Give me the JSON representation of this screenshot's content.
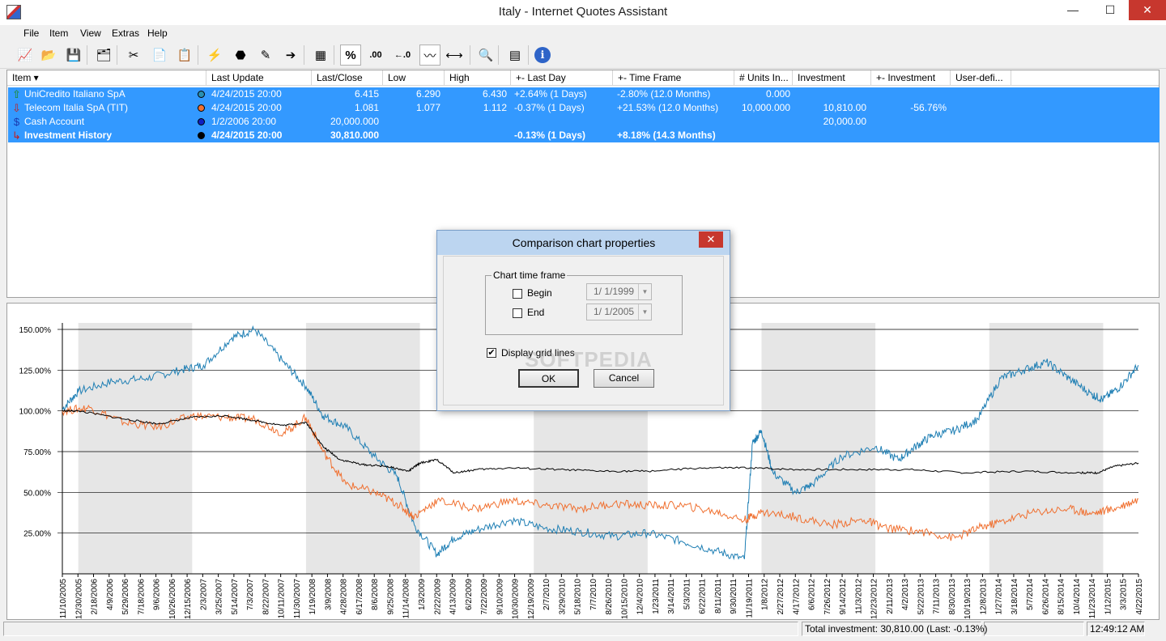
{
  "window": {
    "title": "Italy - Internet Quotes Assistant",
    "minimize": "—",
    "maximize": "☐",
    "close": "✕"
  },
  "menu": [
    "File",
    "Item",
    "View",
    "Extras",
    "Help"
  ],
  "toolbar": {
    "tools": [
      {
        "name": "chart-icon",
        "glyph": "📈"
      },
      {
        "name": "open-folder-icon",
        "glyph": "📂"
      },
      {
        "name": "save-icon",
        "glyph": "💾"
      },
      {
        "name": "new-item-icon",
        "glyph": "🗂"
      },
      {
        "name": "cut-icon",
        "glyph": "✂"
      },
      {
        "name": "copy-icon",
        "glyph": "📄"
      },
      {
        "name": "paste-icon",
        "glyph": "📋"
      },
      {
        "name": "update-quotes-icon",
        "glyph": "⚡"
      },
      {
        "name": "stop-icon",
        "glyph": "⬣"
      },
      {
        "name": "edit-icon",
        "glyph": "✎"
      },
      {
        "name": "import-icon",
        "glyph": "➔"
      },
      {
        "name": "portfolio-icon",
        "glyph": "▦"
      },
      {
        "name": "percent-icon",
        "glyph": "%"
      },
      {
        "name": "increase-decimals-icon",
        "glyph": ".00"
      },
      {
        "name": "decrease-decimals-icon",
        "glyph": "←.0"
      },
      {
        "name": "comparison-chart-icon",
        "glyph": "〰"
      },
      {
        "name": "chart-timeframe-icon",
        "glyph": "⟷"
      },
      {
        "name": "preview-icon",
        "glyph": "🔍"
      },
      {
        "name": "calculator-icon",
        "glyph": "▤"
      },
      {
        "name": "info-icon",
        "glyph": "ℹ"
      }
    ]
  },
  "list": {
    "columns": [
      "Item",
      "Last Update",
      "Last/Close",
      "Low",
      "High",
      "+- Last Day",
      "+- Time Frame",
      "# Units In...",
      "Investment",
      "+- Investment",
      "User-defi..."
    ],
    "rows": [
      {
        "icon": "up-arrow-icon",
        "glyph": "⇧",
        "icon_color": "#1a8a1a",
        "dot": "#2a8fb0",
        "item": "UniCredito Italiano SpA",
        "last_update": "4/24/2015   20:00",
        "last_close": "6.415",
        "low": "6.290",
        "high": "6.430",
        "last_day": "+2.64% (1 Days)",
        "time_frame": "-2.80% (12.0 Months)",
        "units": "0.000",
        "investment": "",
        "inv_change": "",
        "bold": false
      },
      {
        "icon": "down-arrow-icon",
        "glyph": "⇩",
        "icon_color": "#c02020",
        "dot": "#f07030",
        "item": "Telecom Italia SpA (TIT)",
        "last_update": "4/24/2015   20:00",
        "last_close": "1.081",
        "low": "1.077",
        "high": "1.112",
        "last_day": "-0.37% (1 Days)",
        "time_frame": "+21.53% (12.0 Months)",
        "units": "10,000.000",
        "investment": "10,810.00",
        "inv_change": "-56.76%",
        "bold": false
      },
      {
        "icon": "dollar-icon",
        "glyph": "$",
        "icon_color": "#1a3ab0",
        "dot": "#1020c0",
        "item": "Cash Account",
        "last_update": "1/2/2006   20:00",
        "last_close": "20,000.000",
        "low": "",
        "high": "",
        "last_day": "",
        "time_frame": "",
        "units": "",
        "investment": "20,000.00",
        "inv_change": "",
        "bold": false
      },
      {
        "icon": "history-icon",
        "glyph": "↳",
        "icon_color": "#c02020",
        "dot": "#000000",
        "item": "Investment History",
        "last_update": "4/24/2015   20:00",
        "last_close": "30,810.000",
        "low": "",
        "high": "",
        "last_day": "-0.13% (1 Days)",
        "time_frame": "+8.18% (14.3 Months)",
        "units": "",
        "investment": "",
        "inv_change": "",
        "bold": true
      }
    ]
  },
  "chart_data": {
    "type": "line",
    "ylabel_ticks": [
      "150.00%",
      "125.00%",
      "100.00%",
      "75.00%",
      "50.00%",
      "25.00%"
    ],
    "y_ticks": [
      150,
      125,
      100,
      75,
      50,
      25
    ],
    "ylim": [
      0,
      150
    ],
    "grid": true,
    "x_tick_labels": [
      "11/10/2005",
      "12/30/2005",
      "2/18/2006",
      "4/9/2006",
      "5/29/2006",
      "7/18/2006",
      "9/6/2006",
      "10/26/2006",
      "12/15/2006",
      "2/3/2007",
      "3/25/2007",
      "5/14/2007",
      "7/3/2007",
      "8/22/2007",
      "10/11/2007",
      "11/30/2007",
      "1/19/2008",
      "3/9/2008",
      "4/28/2008",
      "6/17/2008",
      "8/6/2008",
      "9/25/2008",
      "11/14/2008",
      "1/3/2009",
      "2/22/2009",
      "4/13/2009",
      "6/2/2009",
      "7/22/2009",
      "9/10/2009",
      "10/30/2009",
      "12/19/2009",
      "2/7/2010",
      "3/29/2010",
      "5/18/2010",
      "7/7/2010",
      "8/26/2010",
      "10/15/2010",
      "12/4/2010",
      "1/23/2011",
      "3/14/2011",
      "5/3/2011",
      "6/22/2011",
      "8/11/2011",
      "9/30/2011",
      "11/19/2011",
      "1/8/2012",
      "2/27/2012",
      "4/17/2012",
      "6/6/2012",
      "7/26/2012",
      "9/14/2012",
      "11/3/2012",
      "12/23/2012",
      "2/11/2013",
      "4/2/2013",
      "5/22/2013",
      "7/11/2013",
      "8/30/2013",
      "10/19/2013",
      "12/8/2013",
      "1/27/2014",
      "3/18/2014",
      "5/7/2014",
      "6/26/2014",
      "8/15/2014",
      "10/4/2014",
      "11/23/2014",
      "1/12/2015",
      "3/3/2015",
      "4/22/2015"
    ],
    "shaded_years": [
      2006,
      2008,
      2010,
      2012,
      2014
    ],
    "series": [
      {
        "name": "UniCredito Italiano SpA",
        "color": "#1f7fb4",
        "x": [
          2005.86,
          2006.0,
          2006.3,
          2006.6,
          2006.9,
          2007.1,
          2007.35,
          2007.55,
          2007.8,
          2008.0,
          2008.15,
          2008.35,
          2008.6,
          2008.8,
          2008.95,
          2009.15,
          2009.3,
          2009.5,
          2009.8,
          2010.1,
          2010.4,
          2010.7,
          2011.0,
          2011.3,
          2011.6,
          2011.85,
          2011.92,
          2012.0,
          2012.1,
          2012.3,
          2012.45,
          2012.7,
          2013.0,
          2013.2,
          2013.35,
          2013.5,
          2013.7,
          2013.9,
          2014.1,
          2014.3,
          2014.5,
          2014.7,
          2014.9,
          2015.0,
          2015.15,
          2015.31
        ],
        "y": [
          101,
          112,
          118,
          120,
          125,
          128,
          145,
          150,
          130,
          115,
          97,
          90,
          72,
          60,
          30,
          12,
          22,
          27,
          33,
          28,
          26,
          23,
          25,
          20,
          14,
          9,
          80,
          88,
          62,
          50,
          55,
          72,
          78,
          70,
          78,
          85,
          88,
          95,
          120,
          125,
          130,
          120,
          110,
          107,
          115,
          128
        ]
      },
      {
        "name": "Telecom Italia SpA (TIT)",
        "color": "#f07030",
        "x": [
          2005.86,
          2006.1,
          2006.4,
          2006.7,
          2007.0,
          2007.3,
          2007.55,
          2007.8,
          2008.0,
          2008.15,
          2008.35,
          2008.6,
          2008.8,
          2008.95,
          2009.15,
          2009.5,
          2009.8,
          2010.1,
          2010.4,
          2010.7,
          2011.0,
          2011.3,
          2011.6,
          2011.85,
          2012.0,
          2012.3,
          2012.6,
          2012.9,
          2013.1,
          2013.4,
          2013.7,
          2013.9,
          2014.1,
          2014.4,
          2014.7,
          2014.9,
          2015.1,
          2015.31
        ],
        "y": [
          100,
          102,
          93,
          90,
          97,
          96,
          95,
          86,
          96,
          75,
          55,
          50,
          43,
          35,
          45,
          40,
          45,
          42,
          40,
          43,
          42,
          42,
          38,
          33,
          38,
          35,
          30,
          33,
          28,
          26,
          22,
          28,
          32,
          38,
          40,
          37,
          40,
          46
        ]
      },
      {
        "name": "Investment History",
        "color": "#000000",
        "x": [
          2005.86,
          2006.0,
          2006.4,
          2006.7,
          2007.0,
          2007.3,
          2007.55,
          2007.8,
          2008.0,
          2008.15,
          2008.3,
          2008.5,
          2008.7,
          2008.9,
          2009.0,
          2009.15,
          2009.3,
          2009.5,
          2009.8,
          2010.2,
          2010.6,
          2011.0,
          2011.5,
          2011.9,
          2012.3,
          2012.8,
          2013.3,
          2013.8,
          2014.3,
          2014.8,
          2014.95,
          2015.1,
          2015.31
        ],
        "y": [
          100,
          100,
          95,
          92,
          96,
          97,
          94,
          91,
          93,
          78,
          70,
          67,
          66,
          63,
          68,
          70,
          62,
          64,
          65,
          64,
          63,
          63,
          65,
          65,
          64,
          64,
          64,
          62,
          63,
          62,
          62,
          66,
          68
        ]
      }
    ]
  },
  "dialog": {
    "title": "Comparison chart properties",
    "close": "✕",
    "group_label": "Chart time frame",
    "begin_label": "Begin",
    "begin_checked": false,
    "begin_date": "1/  1/1999",
    "end_label": "End",
    "end_checked": false,
    "end_date": "1/  1/2005",
    "grid_label": "Display grid lines",
    "grid_checked": "✔",
    "ok_label": "OK",
    "cancel_label": "Cancel",
    "watermark": "SOFTPEDIA"
  },
  "statusbar": {
    "total": "Total investment: 30,810.00 (Last: -0.13%)",
    "time": "12:49:12 AM"
  }
}
